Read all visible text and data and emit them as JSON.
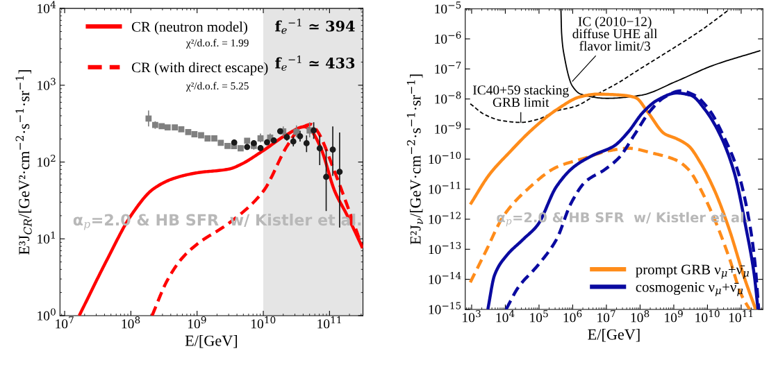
{
  "chart_data": [
    {
      "type": "line",
      "log": "xy",
      "xlabel": "E/[GeV]",
      "ylabel": "E³J$_{CR}$/[GeV²·cm$^{−2}$·s$^{−1}$·sr$^{−1}$]",
      "xlim": [
        8500000.0,
        320000000000.0
      ],
      "ylim": [
        1,
        10000
      ],
      "xticks": [
        {
          "value": 10000000.0,
          "label": "10$^{7}$"
        },
        {
          "value": 100000000.0,
          "label": "10$^{8}$"
        },
        {
          "value": 1000000000.0,
          "label": "10$^{9}$"
        },
        {
          "value": 10000000000.0,
          "label": "10$^{10}$"
        },
        {
          "value": 100000000000.0,
          "label": "10$^{11}$"
        }
      ],
      "yticks": [
        {
          "value": 1,
          "label": "10$^{0}$"
        },
        {
          "value": 10,
          "label": "10$^{1}$"
        },
        {
          "value": 100,
          "label": "10$^{2}$"
        },
        {
          "value": 1000,
          "label": "10$^{3}$"
        },
        {
          "value": 10000,
          "label": "10$^{4}$"
        }
      ],
      "bands": [
        {
          "axis": "x",
          "from": 10000000000.0,
          "to": 320000000000.0,
          "color": "#e5e5e5"
        }
      ],
      "legend": "top",
      "series": [
        {
          "name": "CR (neutron model)",
          "color": "#ff0000",
          "line_style": "solid",
          "x": [
            16600000.0,
            44700000.0,
            100000000.0,
            219000000.0,
            457000000.0,
            1000000000.0,
            3090000000.0,
            4370000000.0,
            10000000000.0,
            22900000000.0,
            41700000000.0,
            52500000000.0,
            74100000000.0,
            120000000000.0,
            186000000000.0,
            316000000000.0
          ],
          "values": [
            1,
            5.56,
            20,
            44.7,
            61.7,
            72.4,
            81.3,
            91.2,
            141,
            229,
            288,
            257,
            151,
            41.7,
            20,
            7.6
          ]
        },
        {
          "name": "CR (with direct escape)",
          "color": "#ff0000",
          "line_style": "dashed",
          "x": [
            209000000.0,
            355000000.0,
            589000000.0,
            1000000000.0,
            3090000000.0,
            10000000000.0,
            22900000000.0,
            35500000000.0,
            52500000000.0,
            64600000000.0,
            120000000000.0,
            186000000000.0,
            316000000000.0
          ],
          "values": [
            1,
            2.88,
            5.56,
            8.51,
            16.2,
            41.7,
            162,
            269,
            309,
            257,
            74.1,
            26.9,
            7.6
          ]
        },
        {
          "type": "scatter",
          "marker": "square",
          "color": "#808080",
          "x": [
            185000000.0,
            233000000.0,
            292000000.0,
            359000000.0,
            461000000.0,
            577000000.0,
            735000000.0,
            912000000.0,
            1150000000.0,
            1440000000.0,
            1820000000.0,
            2280000000.0,
            2880000000.0,
            3610000000.0,
            4550000000.0,
            5700000000.0,
            7190000000.0,
            9080000000.0,
            12700000000.0,
            20000000000.0,
            31700000000.0,
            50100000000.0
          ],
          "values": [
            369,
            304,
            293,
            283,
            283,
            267,
            245,
            230,
            223,
            203,
            203,
            178,
            162,
            161,
            151,
            189,
            162,
            203,
            208,
            251,
            247,
            258
          ],
          "errors": [
            [
              291,
              468
            ],
            [
              270,
              340
            ],
            null,
            null,
            null,
            null,
            null,
            null,
            null,
            null,
            null,
            null,
            null,
            null,
            [
              140,
              165
            ],
            [
              170,
              205
            ],
            [
              145,
              180
            ],
            [
              180,
              235
            ],
            [
              185,
              235
            ],
            [
              215,
              290
            ],
            [
              210,
              300
            ],
            [
              210,
              330
            ]
          ]
        },
        {
          "type": "scatter",
          "marker": "circle",
          "color": "#1a1a1a",
          "x": [
            3640000000.0,
            5700000000.0,
            7190000000.0,
            9080000000.0,
            11400000000.0,
            14400000000.0,
            18000000000.0,
            22700000000.0,
            28400000000.0,
            35900000000.0,
            45000000000.0,
            57700000000.0,
            71100000000.0,
            89000000000.0,
            112000000000.0,
            142000000000.0
          ],
          "values": [
            180,
            157,
            176,
            152,
            181,
            191,
            252,
            211,
            185,
            217,
            176,
            258,
            151,
            64,
            145,
            74.5
          ],
          "errors": [
            null,
            null,
            null,
            null,
            null,
            null,
            null,
            [
              190,
              235
            ],
            [
              160,
              215
            ],
            [
              185,
              255
            ],
            [
              135,
              222
            ],
            [
              200,
              330
            ],
            [
              91,
              222
            ],
            [
              23,
              146
            ],
            [
              66,
              290
            ],
            [
              14,
              242
            ]
          ]
        }
      ],
      "annotations": [
        "χ²/d.o.f. = 1.99",
        "χ²/d.o.f. = 5.25",
        "f$_{e}$$^{−1}$ ≃ 394",
        "f$_{e}$$^{−1}$ ≃ 433",
        "α$_{p}$=2.0 & HB SFR  w/ Kistler et al."
      ]
    },
    {
      "type": "line",
      "log": "xy",
      "xlabel": "E/[GeV]",
      "ylabel": "E²J$_{ν}$/[GeV·cm$^{−2}$·s$^{−1}$·sr$^{−1}$]",
      "xlim": [
        646,
        440000000000.0
      ],
      "ylim": [
        1e-15,
        1e-05
      ],
      "xticks": [
        {
          "value": 1000.0,
          "label": "10$^{3}$"
        },
        {
          "value": 10000.0,
          "label": "10$^{4}$"
        },
        {
          "value": 100000.0,
          "label": "10$^{5}$"
        },
        {
          "value": 1000000.0,
          "label": "10$^{6}$"
        },
        {
          "value": 10000000.0,
          "label": "10$^{7}$"
        },
        {
          "value": 100000000.0,
          "label": "10$^{8}$"
        },
        {
          "value": 1000000000.0,
          "label": "10$^{9}$"
        },
        {
          "value": 10000000000.0,
          "label": "10$^{10}$"
        },
        {
          "value": 100000000000.0,
          "label": "10$^{11}$"
        }
      ],
      "yticks": [
        {
          "value": 1e-15,
          "label": "10$^{−15}$"
        },
        {
          "value": 1e-14,
          "label": "10$^{−14}$"
        },
        {
          "value": 1e-13,
          "label": "10$^{−13}$"
        },
        {
          "value": 1e-12,
          "label": "10$^{−12}$"
        },
        {
          "value": 1e-11,
          "label": "10$^{−11}$"
        },
        {
          "value": 1e-10,
          "label": "10$^{−10}$"
        },
        {
          "value": 1e-09,
          "label": "10$^{−9}$"
        },
        {
          "value": 1e-08,
          "label": "10$^{−8}$"
        },
        {
          "value": 1e-07,
          "label": "10$^{−7}$"
        },
        {
          "value": 1e-06,
          "label": "10$^{−6}$"
        },
        {
          "value": 1e-05,
          "label": "10$^{−5}$"
        }
      ],
      "legend": "bottom right",
      "series": [
        {
          "color": "#000000",
          "line_style": "solid",
          "x": [
            447000.0,
            468000.0,
            562000.0,
            977000.0,
            1740000.0,
            10500000.0,
            102000000.0,
            1200000000.0,
            14100000000.0,
            372000000000.0
          ],
          "values": [
            1e-05,
            1.55e-06,
            2.69e-07,
            2.69e-08,
            1.45e-08,
            1.05e-08,
            1.32e-08,
            3.89e-08,
            1.29e-07,
            4.07e-07
          ]
        },
        {
          "color": "#000000",
          "line_style": "dashed",
          "x": [
            912,
            2450,
            7760,
            28800.0,
            91200.0,
            331000.0,
            1230000.0,
            5370000.0,
            23400000.0,
            74100000.0,
            537000000.0,
            6170000000.0,
            44700000000.0
          ],
          "values": [
            6.92e-09,
            3.02e-09,
            1.91e-09,
            1.66e-09,
            2.09e-09,
            3.98e-09,
            5.75e-09,
            1.45e-08,
            3.55e-08,
            8.13e-08,
            3.24e-07,
            1.86e-06,
            9.55e-06
          ]
        },
        {
          "name": "prompt GRB ν$_{μ}$+ν̄$_{μ}$",
          "color": "#ff8c1a",
          "line_style": "solid",
          "x": [
            912,
            3390,
            12600.0,
            64600.0,
            331000.0,
            1740000.0,
            5370000.0,
            33100000.0,
            74100000.0,
            170000000.0,
            537000000.0,
            1200000000.0,
            2750000000.0,
            6170000000.0,
            16600000000.0,
            44700000000.0,
            117000000000.0,
            269000000000.0
          ],
          "values": [
            3.1e-12,
            3.1e-11,
            1.58e-10,
            1e-09,
            4.37e-09,
            1.2e-08,
            1.45e-08,
            1.32e-08,
            1.1e-08,
            3.63e-09,
            6.92e-10,
            4.79e-10,
            2.75e-10,
            7.59e-11,
            8.51e-12,
            4.47e-13,
            1.38e-14,
            1e-15
          ]
        },
        {
          "color": "#ff8c1a",
          "line_style": "dashed",
          "x": [
            912,
            2450,
            9120,
            46800.0,
            331000.0,
            2400000.0,
            12300000.0,
            45700000.0,
            234000000.0,
            1200000000.0,
            2750000000.0,
            6170000000.0,
            16600000000.0,
            44700000000.0,
            100000000000.0,
            178000000000.0
          ],
          "values": [
            7.94e-15,
            7.24e-14,
            1.35e-12,
            1.02e-11,
            5.37e-11,
            1.1e-10,
            1.91e-10,
            2.29e-10,
            1.58e-10,
            9.12e-11,
            4.47e-11,
            1.02e-11,
            9.33e-13,
            5.01e-14,
            3.16e-15,
            1e-15
          ]
        },
        {
          "name": "cosmogenic ν$_{μ}$+ν̄$_{μ}$",
          "color": "#0a0aa0",
          "line_style": "solid",
          "x": [
            3020,
            4790,
            10700.0,
            33900.0,
            91200.0,
            331000.0,
            1050000.0,
            3890000.0,
            17000000.0,
            45700000.0,
            123000000.0,
            324000000.0,
            1200000000.0,
            3240000000.0,
            8510000000.0,
            22900000000.0,
            61700000000.0,
            138000000000.0,
            245000000000.0,
            316000000000.0
          ],
          "values": [
            1e-15,
            1.38e-14,
            6.03e-14,
            2.14e-13,
            6.46e-13,
            1.23e-11,
            5.37e-11,
            1.32e-10,
            2.75e-10,
            8.32e-10,
            3.63e-09,
            9.12e-09,
            1.58e-08,
            1.32e-08,
            4.37e-09,
            6.92e-10,
            3.72e-11,
            5.37e-13,
            1.38e-14,
            1e-15
          ]
        },
        {
          "color": "#0a0aa0",
          "line_style": "dashed",
          "x": [
            10500.0,
            24500.0,
            91200.0,
            331000.0,
            891000.0,
            2400000.0,
            8910000.0,
            23400000.0,
            70800000.0,
            186000000.0,
            501000000.0,
            1580000000.0,
            4170000000.0,
            11200000000.0,
            30200000000.0,
            81300000000.0,
            186000000000.0,
            257000000000.0,
            331000000000.0
          ],
          "values": [
            1e-15,
            5.5e-15,
            2.88e-14,
            2.14e-13,
            3.39e-12,
            1.78e-11,
            4.47e-11,
            1.1e-10,
            6.92e-10,
            3.63e-09,
            1.1e-08,
            1.86e-08,
            1.32e-08,
            4.37e-09,
            5.75e-10,
            3.72e-11,
            5.37e-13,
            3.47e-14,
            1e-15
          ]
        }
      ],
      "annotations": [
        {
          "text": "IC (2010−12)\ndiffuse UHE all\nflavor limit/3",
          "x": 980000.0,
          "y": 3.9e-08
        },
        {
          "text": "IC40+59 stacking\nGRB limit",
          "x": 28800.0,
          "y": 1.66e-09
        },
        "α$_{p}$=2.0 & HB SFR  w/ Kistler et al."
      ]
    }
  ]
}
